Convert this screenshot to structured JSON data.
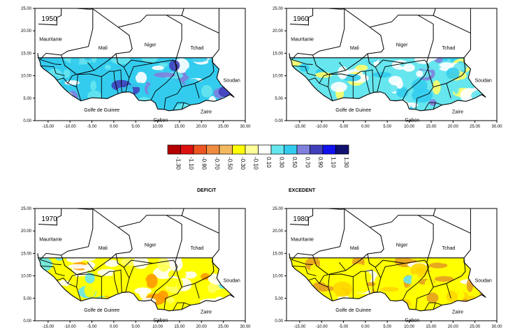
{
  "maps": [
    {
      "year": "1950",
      "palette": [
        "#33ccee",
        "#66e6ee",
        "#4040bb",
        "#8080dd",
        "#ffffff"
      ],
      "weights": [
        0.45,
        0.25,
        0.1,
        0.1,
        0.1
      ]
    },
    {
      "year": "1960",
      "palette": [
        "#66e6ee",
        "#ffffff",
        "#33ccee",
        "#ffff66",
        "#8080dd"
      ],
      "weights": [
        0.42,
        0.25,
        0.2,
        0.08,
        0.05
      ]
    },
    {
      "year": "1970",
      "palette": [
        "#ffff00",
        "#ffffff",
        "#ffff66",
        "#66e6ee",
        "#ff9900"
      ],
      "weights": [
        0.45,
        0.35,
        0.1,
        0.07,
        0.03
      ]
    },
    {
      "year": "1980",
      "palette": [
        "#ffff00",
        "#e6a020",
        "#ffd700",
        "#ffffff",
        "#66e6ee"
      ],
      "weights": [
        0.55,
        0.25,
        0.1,
        0.07,
        0.03
      ]
    }
  ],
  "y_axis_labels": [
    "0.00",
    "5.00",
    "10.00",
    "15.00",
    "20.00",
    "25.00"
  ],
  "x_axis_labels": [
    "-15.00",
    "-10.00",
    "-5.00",
    "0.00",
    "5.00",
    "10.00",
    "15.00",
    "20.00",
    "25.00",
    "30.00"
  ],
  "place_labels": {
    "mauritanie": "Mauritanie",
    "mali": "Mali",
    "niger": "Niger",
    "tchad": "Tchad",
    "soudan": "Soudan",
    "golfe": "Golfe de Guinee",
    "zaire": "Zaire",
    "gabon": "Gabon"
  },
  "legend": {
    "colors": [
      "#b40000",
      "#dd1111",
      "#ee5522",
      "#f08c40",
      "#f4b860",
      "#ffff00",
      "#ffff99",
      "#ffffff",
      "#66e6ee",
      "#33ccee",
      "#8080dd",
      "#4040bb",
      "#1111ee",
      "#101070"
    ],
    "labels": [
      "-1.30",
      "-1.10",
      "-0.90",
      "-0.70",
      "-0.50",
      "-0.30",
      "-0.10",
      "0.10",
      "0.30",
      "0.50",
      "0.70",
      "0.90",
      "1.10",
      "1.30"
    ]
  },
  "captions": {
    "deficit": "DEFICIT",
    "excedent": "EXCEDENT"
  }
}
